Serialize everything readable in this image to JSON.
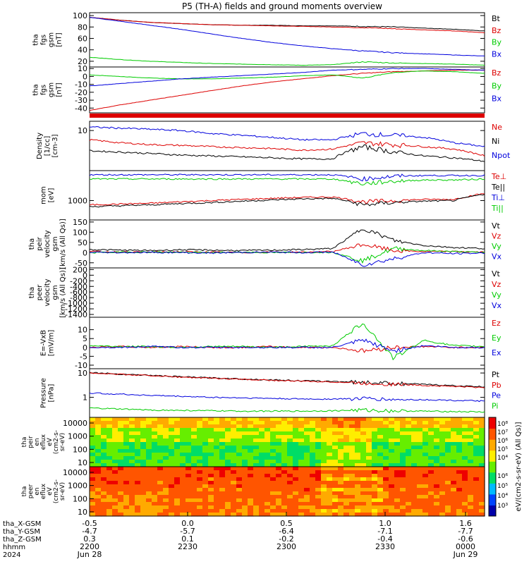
{
  "title": "P5 (TH-A) fields and ground moments overview",
  "colors": {
    "black": "#000000",
    "red": "#dd0000",
    "green": "#00cc00",
    "blue": "#0000dd"
  },
  "chart_data": {
    "type": "line",
    "panels": [
      {
        "ylabel": [
          "tha",
          "fgs",
          "gsm",
          "[nT]"
        ],
        "yticks": [
          "100",
          "80",
          "60",
          "40",
          "20"
        ],
        "ylim": [
          10,
          105
        ],
        "series": [
          {
            "name": "Bt",
            "color": "black",
            "values": [
              97,
              92,
              88,
              86,
              84,
              83,
              83,
              82,
              82,
              81,
              80,
              78,
              76,
              73
            ]
          },
          {
            "name": "Bz",
            "color": "red",
            "values": [
              97,
              92,
              88,
              86,
              84,
              83,
              82,
              81,
              80,
              79,
              77,
              75,
              73,
              70
            ]
          },
          {
            "name": "By",
            "color": "green",
            "values": [
              27,
              23,
              20,
              18,
              16,
              15,
              14,
              13,
              14,
              19,
              17,
              16,
              15,
              13
            ]
          },
          {
            "name": "Bx",
            "color": "blue",
            "values": [
              97,
              90,
              83,
              76,
              68,
              60,
              53,
              47,
              42,
              38,
              35,
              33,
              31,
              29
            ]
          }
        ]
      },
      {
        "ylabel": [
          "tha",
          "fgs",
          "gsm",
          "[nT]"
        ],
        "yticks": [
          "10",
          "0",
          "-10",
          "-20",
          "-30",
          "-40"
        ],
        "ylim": [
          -46,
          12
        ],
        "series": [
          {
            "name": "Bz",
            "color": "red",
            "values": [
              -43,
              -36,
              -30,
              -24,
              -18,
              -12,
              -7,
              -3,
              1,
              4,
              6,
              7,
              8,
              8
            ]
          },
          {
            "name": "By",
            "color": "green",
            "values": [
              2,
              0,
              -2,
              -3,
              -3,
              -2,
              -1,
              1,
              2,
              -2,
              5,
              7,
              6,
              4
            ]
          },
          {
            "name": "Bx",
            "color": "blue",
            "values": [
              -12,
              -9,
              -6,
              -3,
              -1,
              1,
              3,
              5,
              8,
              9,
              10,
              10,
              9,
              8
            ]
          }
        ]
      },
      {
        "ylabel": [
          "Density",
          "[1/cc]",
          "[cm-3]"
        ],
        "yticks": [
          "10"
        ],
        "ylim": [
          0.5,
          20
        ],
        "log": true,
        "series": [
          {
            "name": "Ne",
            "color": "red",
            "values": [
              5,
              4,
              3.5,
              3.3,
              3,
              2.8,
              2.6,
              2.3,
              2.5,
              4,
              3.5,
              3,
              2.5,
              1.5
            ]
          },
          {
            "name": "Ni",
            "color": "black",
            "values": [
              2.2,
              2,
              1.8,
              1.6,
              1.5,
              1.4,
              1.3,
              1.2,
              1.2,
              3,
              2,
              1.5,
              1.3,
              1
            ]
          },
          {
            "name": "Npot",
            "color": "blue",
            "values": [
              13,
              12,
              11,
              10,
              8,
              7,
              6,
              5,
              5,
              8,
              7,
              6,
              4,
              3
            ]
          }
        ]
      },
      {
        "ylabel": [
          "mom",
          "[eV]"
        ],
        "yticks": [
          "1000"
        ],
        "ylim": [
          200,
          12000
        ],
        "log": true,
        "series": [
          {
            "name": "Te⊥",
            "color": "red",
            "values": [
              700,
              750,
              800,
              900,
              1000,
              1100,
              1200,
              1300,
              1350,
              900,
              1000,
              1100,
              1100,
              1800
            ]
          },
          {
            "name": "Te||",
            "color": "black",
            "values": [
              600,
              650,
              700,
              780,
              850,
              950,
              1050,
              1150,
              1200,
              700,
              850,
              950,
              1000,
              1700
            ]
          },
          {
            "name": "Ti⊥",
            "color": "blue",
            "values": [
              8500,
              8500,
              8500,
              8500,
              8500,
              8500,
              8500,
              8500,
              8500,
              6000,
              7500,
              8000,
              8000,
              8000
            ]
          },
          {
            "name": "Ti||",
            "color": "green",
            "values": [
              6000,
              6000,
              6000,
              6000,
              6000,
              6000,
              6000,
              6000,
              6000,
              4000,
              5000,
              5500,
              5500,
              6000
            ]
          }
        ]
      },
      {
        "ylabel": [
          "tha",
          "peir",
          "velocity",
          "gsm",
          "[km/s (All Qs)]"
        ],
        "yticks": [
          "150",
          "100",
          "50",
          "0",
          "-50"
        ],
        "ylim": [
          -75,
          160
        ],
        "series": [
          {
            "name": "Vt",
            "color": "black",
            "values": [
              15,
              12,
              10,
              14,
              12,
              10,
              12,
              15,
              20,
              120,
              60,
              35,
              25,
              20
            ]
          },
          {
            "name": "Vz",
            "color": "red",
            "values": [
              5,
              3,
              2,
              4,
              2,
              0,
              3,
              2,
              5,
              40,
              10,
              5,
              5,
              2
            ]
          },
          {
            "name": "Vy",
            "color": "green",
            "values": [
              0,
              2,
              3,
              1,
              0,
              2,
              0,
              1,
              2,
              -40,
              20,
              10,
              5,
              0
            ]
          },
          {
            "name": "Vx",
            "color": "blue",
            "values": [
              2,
              0,
              1,
              0,
              -2,
              1,
              2,
              0,
              3,
              -60,
              -30,
              0,
              -5,
              -2
            ]
          }
        ]
      },
      {
        "ylabel": [
          "tha",
          "peer",
          "velocity",
          "gsm",
          "[km/s (All Qs)]"
        ],
        "yticks": [
          "200",
          "0",
          "-200",
          "-400",
          "-600",
          "-800",
          "-1000",
          "-1200",
          "-1400"
        ],
        "ylim": [
          -1500,
          260
        ],
        "series": [
          {
            "name": "Vt",
            "color": "black",
            "values": []
          },
          {
            "name": "Vz",
            "color": "red",
            "values": []
          },
          {
            "name": "Vy",
            "color": "green",
            "values": []
          },
          {
            "name": "Vx",
            "color": "blue",
            "values": []
          }
        ]
      },
      {
        "ylabel": [
          "E=-VxB",
          "[mV/m]"
        ],
        "yticks": [
          "10",
          "5",
          "0",
          "-5",
          "-10"
        ],
        "ylim": [
          -12,
          17
        ],
        "series": [
          {
            "name": "Ez",
            "color": "red",
            "values": [
              0,
              0.5,
              0,
              0.5,
              0,
              0,
              0.5,
              0,
              0,
              -2,
              0,
              0.5,
              0,
              0
            ]
          },
          {
            "name": "Ey",
            "color": "green",
            "values": [
              1,
              0.5,
              0.5,
              0,
              0.5,
              0.5,
              0,
              0.5,
              1,
              14,
              -6,
              4,
              1,
              0.5
            ]
          },
          {
            "name": "Ex",
            "color": "blue",
            "values": [
              0,
              0,
              0.5,
              0,
              0,
              0,
              0,
              0,
              0,
              4,
              -2,
              1,
              0,
              0
            ]
          }
        ]
      },
      {
        "ylabel": [
          "Pressure",
          "[nPa]"
        ],
        "yticks": [
          "10",
          "1"
        ],
        "ylim": [
          0.15,
          15
        ],
        "log": true,
        "series": [
          {
            "name": "Pt",
            "color": "black",
            "values": [
              10.5,
              9,
              8,
              7,
              6.3,
              5.7,
              5.2,
              4.8,
              4.5,
              4.2,
              3.8,
              3.4,
              3,
              2.7
            ]
          },
          {
            "name": "Pb",
            "color": "red",
            "values": [
              10.2,
              8.8,
              7.8,
              6.8,
              6.1,
              5.5,
              5,
              4.6,
              4.3,
              3.8,
              3.5,
              3.1,
              2.8,
              2.5
            ]
          },
          {
            "name": "Pe",
            "color": "blue",
            "values": [
              1.5,
              1.35,
              1.2,
              1.1,
              1,
              0.95,
              0.9,
              0.85,
              0.85,
              0.9,
              0.8,
              0.8,
              0.75,
              0.7
            ]
          },
          {
            "name": "Pi",
            "color": "green",
            "values": [
              0.36,
              0.33,
              0.3,
              0.29,
              0.28,
              0.27,
              0.27,
              0.27,
              0.28,
              0.3,
              0.28,
              0.27,
              0.26,
              0.25
            ]
          }
        ]
      }
    ],
    "spectrograms": [
      {
        "ylabel": [
          "tha",
          "peir",
          "en",
          "eflux",
          "eV",
          "(cm2-s-",
          "sr-eV)"
        ],
        "yticks": [
          "10000",
          "1000",
          "100",
          "10"
        ]
      },
      {
        "ylabel": [
          "tha",
          "peer",
          "en",
          "eflux",
          "eV",
          "(cm2-s-",
          "sr-eV)"
        ],
        "yticks": [
          "10000",
          "1000",
          "100",
          "10"
        ]
      }
    ],
    "colorbar": {
      "label": "eV/(cm2-s-sr-eV) (All Qs)]",
      "top_ticks": [
        "10⁸",
        "10⁷",
        "10⁶",
        "10⁵",
        "10⁴"
      ],
      "bottom_ticks": [
        "10⁶",
        "10⁵",
        "10⁴",
        "10³"
      ]
    },
    "xaxis": {
      "rows": [
        {
          "name": "tha_X-GSM",
          "values": [
            "-0.5",
            "0.0",
            "0.5",
            "1.0",
            "1.6"
          ]
        },
        {
          "name": "tha_Y-GSM",
          "values": [
            "-4.7",
            "-5.7",
            "-6.4",
            "-7.1",
            "-7.7"
          ]
        },
        {
          "name": "tha_Z-GSM",
          "values": [
            "0.3",
            "0.1",
            "-0.2",
            "-0.4",
            "-0.6"
          ]
        },
        {
          "name": "hhmm",
          "values": [
            "2200",
            "2230",
            "2300",
            "2330",
            "0000"
          ]
        },
        {
          "name": "2024",
          "values": [
            "Jun 28",
            "",
            "",
            "",
            "Jun 29"
          ]
        }
      ]
    }
  }
}
